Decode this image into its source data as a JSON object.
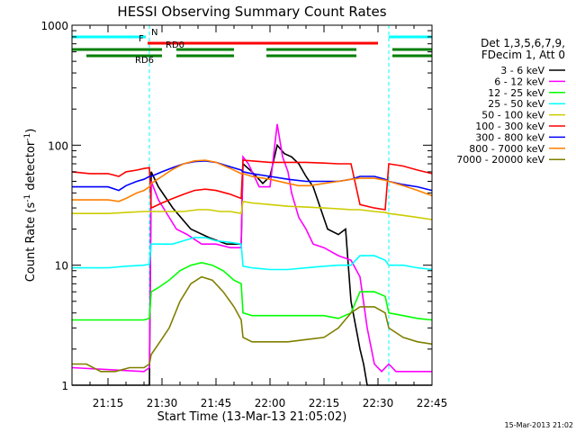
{
  "chart_data": {
    "type": "line",
    "title": "HESSI Observing Summary Count Rates",
    "xlabel": "Start Time (13-Mar-13 21:05:02)",
    "ylabel_main": "Count Rate (s",
    "ylabel_sup1": "-1",
    "ylabel_mid": " detector",
    "ylabel_sup2": "-1",
    "ylabel_end": ")",
    "x_range_min": [
      0,
      100
    ],
    "y_scale": "log",
    "ylim": [
      1,
      1000
    ],
    "x_ticks": [
      {
        "label": "21:15",
        "min": 10
      },
      {
        "label": "21:30",
        "min": 25
      },
      {
        "label": "21:45",
        "min": 40
      },
      {
        "label": "22:00",
        "min": 55
      },
      {
        "label": "22:15",
        "min": 70
      },
      {
        "label": "22:30",
        "min": 85
      },
      {
        "label": "22:45",
        "min": 100
      }
    ],
    "y_ticks": [
      {
        "label": "1",
        "v": 1
      },
      {
        "label": "10",
        "v": 10
      },
      {
        "label": "100",
        "v": 100
      },
      {
        "label": "1000",
        "v": 1000
      }
    ],
    "legend_header": [
      "Det 1,3,5,6,7,9,",
      "FDecim 1, Att 0"
    ],
    "footer_date": "15-Mar-2013 21:02",
    "night_boundaries_min": [
      21.5,
      88
    ],
    "status_bars": [
      {
        "label": "N",
        "color": "#00ffff",
        "row": 0,
        "segments": [
          [
            0,
            20.5
          ],
          [
            88,
            100
          ]
        ]
      },
      {
        "label": "F",
        "color": "#ff0000",
        "row": 1,
        "segments": [
          [
            21,
            85
          ]
        ]
      },
      {
        "label": "RD0",
        "color": "#007f00",
        "row": 2,
        "segments": [
          [
            0,
            25
          ],
          [
            29,
            45
          ],
          [
            54,
            79
          ],
          [
            89,
            100
          ]
        ]
      },
      {
        "label": "RD6",
        "color": "#007f00",
        "row": 3,
        "segments": [
          [
            4,
            25
          ],
          [
            29,
            45
          ],
          [
            54,
            79
          ],
          [
            89,
            100
          ]
        ]
      }
    ],
    "series": [
      {
        "name": "3 - 6 keV",
        "color": "#000000",
        "points": [
          [
            0,
            1
          ],
          [
            20,
            1
          ],
          [
            21.5,
            1
          ],
          [
            22,
            60
          ],
          [
            24,
            45
          ],
          [
            28,
            30
          ],
          [
            33,
            20
          ],
          [
            38,
            17
          ],
          [
            43,
            15
          ],
          [
            47,
            15
          ],
          [
            47.5,
            70
          ],
          [
            50,
            60
          ],
          [
            53,
            48
          ],
          [
            55,
            55
          ],
          [
            57,
            100
          ],
          [
            59,
            85
          ],
          [
            61,
            80
          ],
          [
            63,
            70
          ],
          [
            65,
            55
          ],
          [
            67,
            45
          ],
          [
            69,
            30
          ],
          [
            71,
            20
          ],
          [
            74,
            18
          ],
          [
            76,
            20
          ],
          [
            77.5,
            5
          ],
          [
            80,
            2
          ],
          [
            81,
            1.5
          ],
          [
            82,
            1
          ],
          [
            100,
            1
          ]
        ]
      },
      {
        "name": "6 - 12 keV",
        "color": "#ff00ff",
        "points": [
          [
            0,
            1.4
          ],
          [
            20,
            1.3
          ],
          [
            21.5,
            1.4
          ],
          [
            22,
            50
          ],
          [
            24,
            35
          ],
          [
            26,
            28
          ],
          [
            29,
            20
          ],
          [
            32,
            18
          ],
          [
            36,
            15
          ],
          [
            40,
            15
          ],
          [
            44,
            14
          ],
          [
            47,
            14
          ],
          [
            47.5,
            80
          ],
          [
            49,
            70
          ],
          [
            52,
            45
          ],
          [
            55,
            45
          ],
          [
            57,
            150
          ],
          [
            58.5,
            80
          ],
          [
            60,
            60
          ],
          [
            61,
            40
          ],
          [
            63,
            25
          ],
          [
            65,
            20
          ],
          [
            67,
            15
          ],
          [
            70,
            14
          ],
          [
            74,
            12
          ],
          [
            77.5,
            11
          ],
          [
            80,
            8
          ],
          [
            82,
            3
          ],
          [
            84,
            1.5
          ],
          [
            86,
            1.3
          ],
          [
            88,
            1.5
          ],
          [
            90,
            1.3
          ],
          [
            100,
            1.3
          ]
        ]
      },
      {
        "name": "12 - 25 keV",
        "color": "#00ff00",
        "points": [
          [
            0,
            3.5
          ],
          [
            20,
            3.5
          ],
          [
            21.5,
            3.6
          ],
          [
            22,
            6
          ],
          [
            24,
            6.5
          ],
          [
            27,
            7.5
          ],
          [
            30,
            9
          ],
          [
            33,
            10
          ],
          [
            36,
            10.5
          ],
          [
            39,
            10
          ],
          [
            42,
            9
          ],
          [
            45,
            7.5
          ],
          [
            47,
            7
          ],
          [
            47.5,
            4
          ],
          [
            50,
            3.8
          ],
          [
            55,
            3.8
          ],
          [
            60,
            3.8
          ],
          [
            65,
            3.8
          ],
          [
            70,
            3.8
          ],
          [
            74,
            3.6
          ],
          [
            77.5,
            4
          ],
          [
            80,
            6
          ],
          [
            84,
            6
          ],
          [
            87,
            5.5
          ],
          [
            88,
            4
          ],
          [
            92,
            3.8
          ],
          [
            96,
            3.6
          ],
          [
            100,
            3.5
          ]
        ]
      },
      {
        "name": "25 - 50 keV",
        "color": "#00ffff",
        "points": [
          [
            0,
            9.5
          ],
          [
            5,
            9.5
          ],
          [
            10,
            9.5
          ],
          [
            15,
            9.8
          ],
          [
            20,
            10
          ],
          [
            21.5,
            10.2
          ],
          [
            22,
            15
          ],
          [
            25,
            15
          ],
          [
            28,
            15
          ],
          [
            31,
            16
          ],
          [
            34,
            17
          ],
          [
            37,
            17
          ],
          [
            40,
            16
          ],
          [
            44,
            15.5
          ],
          [
            47,
            15
          ],
          [
            47.5,
            9.8
          ],
          [
            50,
            9.5
          ],
          [
            55,
            9.2
          ],
          [
            60,
            9.2
          ],
          [
            65,
            9.5
          ],
          [
            70,
            9.8
          ],
          [
            74,
            10
          ],
          [
            77.5,
            10
          ],
          [
            80,
            12
          ],
          [
            84,
            12
          ],
          [
            87,
            11
          ],
          [
            88,
            10
          ],
          [
            92,
            10
          ],
          [
            96,
            9.5
          ],
          [
            100,
            9.2
          ]
        ]
      },
      {
        "name": "50 - 100 keV",
        "color": "#cccc00",
        "points": [
          [
            0,
            27
          ],
          [
            10,
            27
          ],
          [
            15,
            27.5
          ],
          [
            20,
            28
          ],
          [
            21.5,
            28
          ],
          [
            22,
            28
          ],
          [
            25,
            28
          ],
          [
            28,
            28
          ],
          [
            31,
            28
          ],
          [
            35,
            29
          ],
          [
            38,
            29
          ],
          [
            41,
            28
          ],
          [
            44,
            28
          ],
          [
            47,
            27
          ],
          [
            47.5,
            34
          ],
          [
            50,
            33
          ],
          [
            55,
            32
          ],
          [
            60,
            31
          ],
          [
            65,
            30.5
          ],
          [
            70,
            30
          ],
          [
            74,
            29.5
          ],
          [
            77.5,
            29
          ],
          [
            80,
            29
          ],
          [
            84,
            28
          ],
          [
            87,
            27.5
          ],
          [
            88,
            27
          ],
          [
            92,
            26
          ],
          [
            96,
            25
          ],
          [
            100,
            24
          ]
        ]
      },
      {
        "name": "100 - 300 keV",
        "color": "#ff0000",
        "points": [
          [
            0,
            60
          ],
          [
            5,
            58
          ],
          [
            10,
            58
          ],
          [
            13,
            55
          ],
          [
            15,
            60
          ],
          [
            18,
            62
          ],
          [
            20,
            64
          ],
          [
            21.5,
            65
          ],
          [
            22,
            30
          ],
          [
            25,
            33
          ],
          [
            28,
            36
          ],
          [
            31,
            39
          ],
          [
            34,
            42
          ],
          [
            37,
            43
          ],
          [
            40,
            42
          ],
          [
            44,
            39
          ],
          [
            47,
            36
          ],
          [
            47.5,
            75
          ],
          [
            50,
            74
          ],
          [
            55,
            72
          ],
          [
            60,
            72
          ],
          [
            65,
            72
          ],
          [
            70,
            71
          ],
          [
            74,
            70
          ],
          [
            77.5,
            70
          ],
          [
            80,
            32
          ],
          [
            84,
            30
          ],
          [
            87,
            29
          ],
          [
            88,
            70
          ],
          [
            92,
            67
          ],
          [
            96,
            62
          ],
          [
            100,
            58
          ]
        ]
      },
      {
        "name": "300 - 800 keV",
        "color": "#0000ff",
        "points": [
          [
            0,
            45
          ],
          [
            10,
            45
          ],
          [
            13,
            42
          ],
          [
            15,
            46
          ],
          [
            18,
            50
          ],
          [
            20,
            52
          ],
          [
            21.5,
            55
          ],
          [
            22,
            55
          ],
          [
            25,
            60
          ],
          [
            28,
            65
          ],
          [
            31,
            70
          ],
          [
            34,
            73
          ],
          [
            37,
            74
          ],
          [
            40,
            72
          ],
          [
            44,
            66
          ],
          [
            47,
            62
          ],
          [
            47.5,
            60
          ],
          [
            50,
            58
          ],
          [
            55,
            55
          ],
          [
            60,
            52
          ],
          [
            65,
            50
          ],
          [
            70,
            50
          ],
          [
            74,
            50
          ],
          [
            77.5,
            52
          ],
          [
            80,
            55
          ],
          [
            84,
            55
          ],
          [
            87,
            52
          ],
          [
            88,
            50
          ],
          [
            92,
            47
          ],
          [
            96,
            45
          ],
          [
            100,
            42
          ]
        ]
      },
      {
        "name": "800 - 7000 keV",
        "color": "#ff7f00",
        "points": [
          [
            0,
            35
          ],
          [
            10,
            35
          ],
          [
            13,
            34
          ],
          [
            15,
            36
          ],
          [
            18,
            40
          ],
          [
            20,
            42
          ],
          [
            21.5,
            45
          ],
          [
            22,
            48
          ],
          [
            25,
            55
          ],
          [
            28,
            63
          ],
          [
            31,
            70
          ],
          [
            34,
            74
          ],
          [
            37,
            75
          ],
          [
            40,
            72
          ],
          [
            44,
            64
          ],
          [
            47,
            58
          ],
          [
            47.5,
            58
          ],
          [
            50,
            55
          ],
          [
            55,
            52
          ],
          [
            60,
            48
          ],
          [
            63,
            46
          ],
          [
            66,
            46
          ],
          [
            70,
            48
          ],
          [
            74,
            50
          ],
          [
            77.5,
            52
          ],
          [
            80,
            53
          ],
          [
            84,
            53
          ],
          [
            87,
            51
          ],
          [
            88,
            50
          ],
          [
            92,
            46
          ],
          [
            96,
            42
          ],
          [
            100,
            38
          ]
        ]
      },
      {
        "name": "7000 - 20000 keV",
        "color": "#7f7f00",
        "points": [
          [
            0,
            1.5
          ],
          [
            4,
            1.5
          ],
          [
            8,
            1.3
          ],
          [
            12,
            1.3
          ],
          [
            16,
            1.4
          ],
          [
            20,
            1.4
          ],
          [
            21.5,
            1.5
          ],
          [
            22,
            1.8
          ],
          [
            24,
            2.2
          ],
          [
            27,
            3
          ],
          [
            30,
            5
          ],
          [
            33,
            7
          ],
          [
            36,
            8
          ],
          [
            39,
            7.5
          ],
          [
            42,
            6
          ],
          [
            45,
            4.5
          ],
          [
            47,
            3.5
          ],
          [
            47.5,
            2.5
          ],
          [
            50,
            2.3
          ],
          [
            55,
            2.3
          ],
          [
            60,
            2.3
          ],
          [
            65,
            2.4
          ],
          [
            70,
            2.5
          ],
          [
            74,
            3
          ],
          [
            77.5,
            4
          ],
          [
            80,
            4.5
          ],
          [
            84,
            4.5
          ],
          [
            87,
            4
          ],
          [
            88,
            3
          ],
          [
            92,
            2.5
          ],
          [
            96,
            2.3
          ],
          [
            100,
            2.2
          ]
        ]
      }
    ]
  }
}
